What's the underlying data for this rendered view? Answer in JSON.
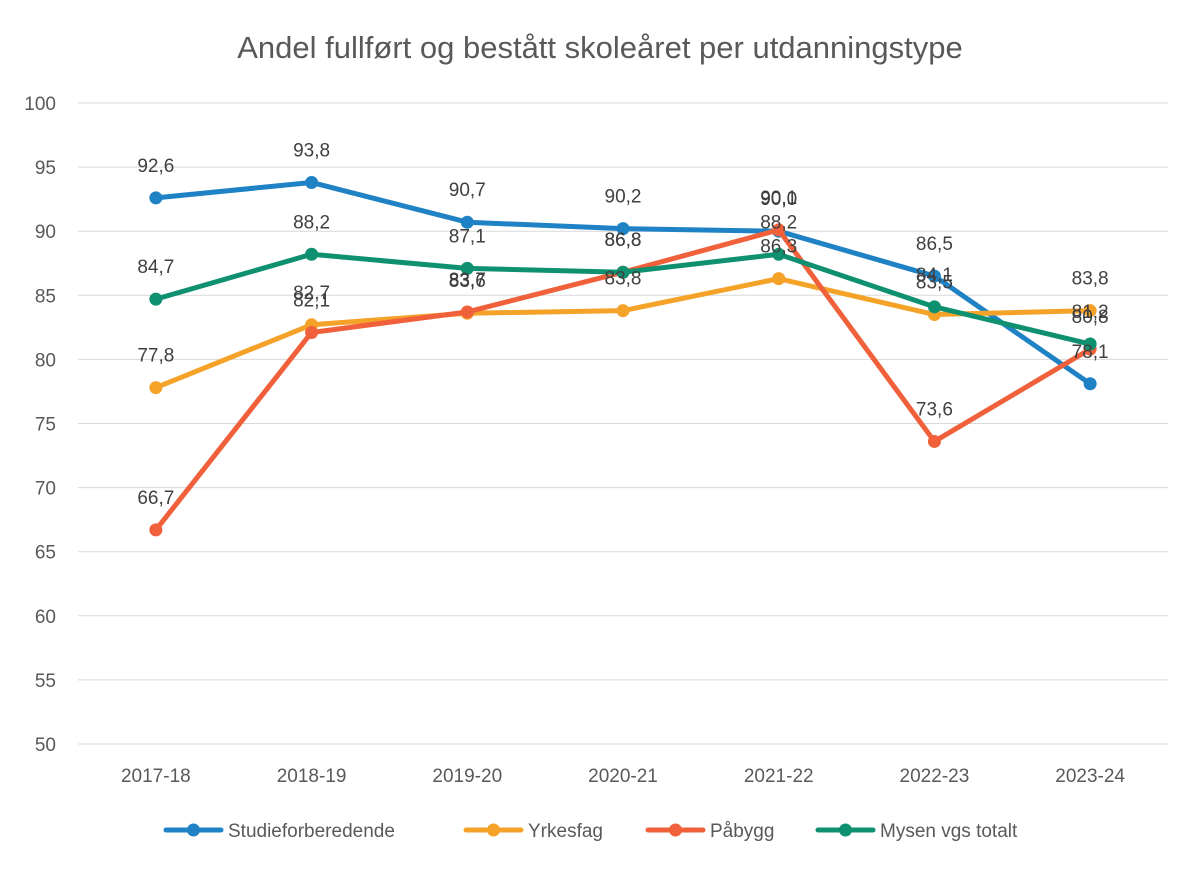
{
  "chart_data": {
    "type": "line",
    "title": "Andel fullført og bestått skoleåret per utdanningstype",
    "categories": [
      "2017-18",
      "2018-19",
      "2019-20",
      "2020-21",
      "2021-22",
      "2022-23",
      "2023-24"
    ],
    "ylim": [
      50,
      100
    ],
    "yticks": [
      50,
      55,
      60,
      65,
      70,
      75,
      80,
      85,
      90,
      95,
      100
    ],
    "ytick_labels": [
      "50",
      "55",
      "60",
      "65",
      "70",
      "75",
      "80",
      "85",
      "90",
      "95",
      "100"
    ],
    "grid": true,
    "legend_position": "bottom",
    "series": [
      {
        "name": "Studieforberedende",
        "color": "#1f82c4",
        "values": [
          92.6,
          93.8,
          90.7,
          90.2,
          90.0,
          86.5,
          78.1
        ],
        "labels": [
          "92,6",
          "93,8",
          "90,7",
          "90,2",
          "90,0",
          "86,5",
          "78,1"
        ]
      },
      {
        "name": "Yrkesfag",
        "color": "#f5a229",
        "values": [
          77.8,
          82.7,
          83.6,
          83.8,
          86.3,
          83.5,
          83.8
        ],
        "labels": [
          "77,8",
          "82,7",
          "83,6",
          "83,8",
          "86,3",
          "83,5",
          "83,8"
        ]
      },
      {
        "name": "Påbygg",
        "color": "#f0603a",
        "values": [
          66.7,
          82.1,
          83.7,
          86.8,
          90.1,
          73.6,
          80.8
        ],
        "labels": [
          "66,7",
          "82,1",
          "83,7",
          "86,8",
          "90,1",
          "73,6",
          "80,8"
        ]
      },
      {
        "name": "Mysen vgs totalt",
        "color": "#0f9070",
        "values": [
          84.7,
          88.2,
          87.1,
          86.8,
          88.2,
          84.1,
          81.2
        ],
        "labels": [
          "84,7",
          "88,2",
          "87,1",
          "86,8",
          "88,2",
          "84,1",
          "81,2"
        ]
      }
    ]
  }
}
